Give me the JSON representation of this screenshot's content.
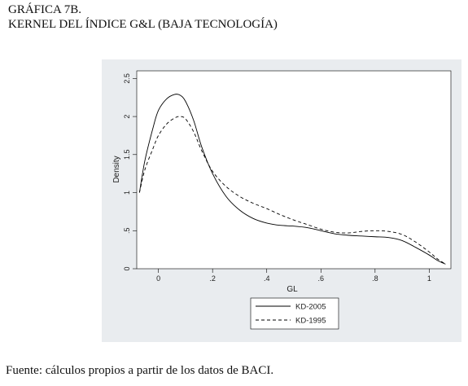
{
  "header": {
    "line1": "GRÁFICA 7B.",
    "line2": "KERNEL DEL ÍNDICE G&L (BAJA TECNOLOGÍA)"
  },
  "footer": {
    "source": "Fuente: cálculos propios a partir de los datos de BACI."
  },
  "chart_data": {
    "type": "line",
    "title": "",
    "xlabel": "GL",
    "ylabel": "Density",
    "xlim": [
      -0.08,
      1.08
    ],
    "ylim": [
      0,
      2.6
    ],
    "x_ticks": [
      0,
      0.2,
      0.4,
      0.6,
      0.8,
      1
    ],
    "x_tick_labels": [
      "0",
      ".2",
      ".4",
      ".6",
      ".8",
      "1"
    ],
    "y_ticks": [
      0,
      0.5,
      1,
      1.5,
      2,
      2.5
    ],
    "y_tick_labels": [
      "0",
      ".5",
      "1",
      "1.5",
      "2",
      "2.5"
    ],
    "grid": false,
    "legend_position": "bottom",
    "series": [
      {
        "name": "KD-2005",
        "line_style": "solid",
        "color": "#000000",
        "x": [
          -0.07,
          -0.05,
          -0.02,
          0.0,
          0.03,
          0.06,
          0.08,
          0.1,
          0.13,
          0.16,
          0.2,
          0.25,
          0.3,
          0.35,
          0.4,
          0.45,
          0.5,
          0.55,
          0.6,
          0.65,
          0.7,
          0.75,
          0.8,
          0.85,
          0.9,
          0.95,
          1.0,
          1.03,
          1.06
        ],
        "values": [
          1.0,
          1.42,
          1.85,
          2.08,
          2.23,
          2.29,
          2.28,
          2.2,
          1.95,
          1.6,
          1.25,
          0.95,
          0.77,
          0.66,
          0.6,
          0.57,
          0.56,
          0.54,
          0.5,
          0.46,
          0.44,
          0.43,
          0.42,
          0.41,
          0.37,
          0.28,
          0.18,
          0.11,
          0.06
        ]
      },
      {
        "name": "KD-1995",
        "line_style": "dashed",
        "color": "#000000",
        "x": [
          -0.07,
          -0.05,
          -0.02,
          0.0,
          0.03,
          0.06,
          0.08,
          0.1,
          0.13,
          0.16,
          0.2,
          0.25,
          0.3,
          0.35,
          0.4,
          0.45,
          0.5,
          0.55,
          0.6,
          0.65,
          0.7,
          0.75,
          0.8,
          0.85,
          0.9,
          0.95,
          1.0,
          1.03,
          1.06
        ],
        "values": [
          1.0,
          1.3,
          1.58,
          1.75,
          1.9,
          1.98,
          2.0,
          1.97,
          1.8,
          1.55,
          1.28,
          1.08,
          0.95,
          0.86,
          0.79,
          0.71,
          0.64,
          0.58,
          0.52,
          0.48,
          0.47,
          0.49,
          0.5,
          0.49,
          0.45,
          0.35,
          0.22,
          0.13,
          0.06
        ]
      }
    ]
  }
}
